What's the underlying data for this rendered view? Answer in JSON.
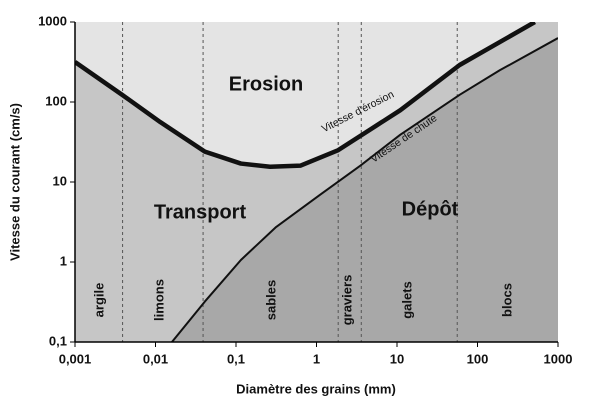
{
  "chart_data": {
    "type": "line",
    "x_label": "Diamètre des grains (mm)",
    "y_label": "Vitesse du courant (cm/s)",
    "xscale": "log",
    "yscale": "log",
    "xlim": [
      0.001,
      1000
    ],
    "ylim": [
      0.1,
      1000
    ],
    "xticks": [
      {
        "value": 0.001,
        "label": "0,001"
      },
      {
        "value": 0.01,
        "label": "0,01"
      },
      {
        "value": 0.1,
        "label": "0,1"
      },
      1,
      10,
      100,
      1000
    ],
    "yticks": [
      {
        "value": 0.1,
        "label": "0,1"
      },
      1,
      10,
      100,
      1000
    ],
    "series": [
      {
        "name": "Vitesse d'érosion",
        "color": "#111111",
        "width": 4.5,
        "x": [
          0.001,
          0.0039,
          0.0115,
          0.041,
          0.115,
          0.265,
          0.63,
          1.86,
          11,
          60,
          516
        ],
        "values": [
          316,
          122,
          56,
          24,
          17,
          15.5,
          16,
          25,
          79,
          290,
          1000
        ]
      },
      {
        "name": "Vitesse de chute",
        "color": "#111111",
        "width": 2,
        "x": [
          0.016,
          0.041,
          0.115,
          0.31,
          1.1,
          3.5,
          11,
          60,
          190,
          1000
        ],
        "values": [
          0.1,
          0.32,
          1.06,
          2.7,
          6.9,
          16,
          39,
          123,
          250,
          630
        ]
      }
    ],
    "regions": [
      {
        "label": "Erosion",
        "color": "#e4e4e4"
      },
      {
        "label": "Transport",
        "color": "#c6c6c6"
      },
      {
        "label": "Dépôt",
        "color": "#a8a8a8"
      }
    ],
    "grain_classes": [
      "argile",
      "limons",
      "sables",
      "graviers",
      "galets",
      "blocs"
    ],
    "class_boundaries": [
      0.0039,
      0.039,
      1.86,
      3.6,
      56
    ]
  }
}
